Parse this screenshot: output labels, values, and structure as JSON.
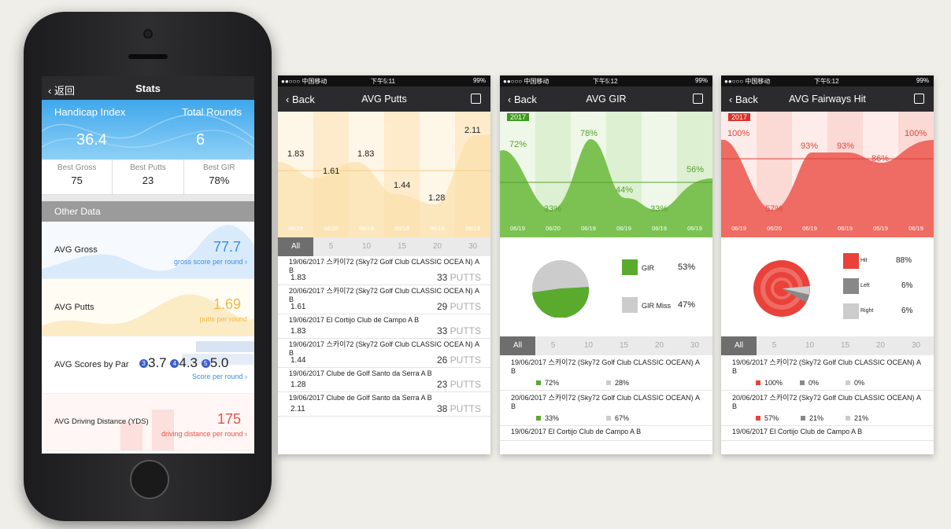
{
  "phone": {
    "nav": {
      "back": "返回",
      "title": "Stats"
    },
    "hero": {
      "handicap_label": "Handicap Index",
      "rounds_label": "Total Rounds",
      "handicap": "36.4",
      "rounds": "6"
    },
    "bests": [
      {
        "label": "Best Gross",
        "value": "75"
      },
      {
        "label": "Best Putts",
        "value": "23"
      },
      {
        "label": "Best GIR",
        "value": "78%"
      }
    ],
    "other_header": "Other Data",
    "rows": [
      {
        "name": "AVG Gross",
        "value": "77.7",
        "sub": "gross score per round",
        "color": "#3a8ee6"
      },
      {
        "name": "AVG Putts",
        "value": "1.69",
        "sub": "putts per round",
        "color": "#f0b840"
      },
      {
        "name": "AVG Scores by Par",
        "par3": "3.7",
        "par4": "4.3",
        "par5": "5.0",
        "sub": "Score per round",
        "color": "#3a5fcd"
      },
      {
        "name": "AVG Driving Distance (YDS)",
        "value": "175",
        "sub": "driving distance per round",
        "color": "#e8514a"
      }
    ],
    "par_badges": [
      "3",
      "4",
      "5"
    ]
  },
  "status": {
    "carrier": "●●○○○ 中国移动",
    "battery": "99%",
    "t1": "下午5:11",
    "t2": "下午5:12"
  },
  "tabs": [
    "All",
    "5",
    "10",
    "15",
    "20",
    "30"
  ],
  "putts_screen": {
    "nav": {
      "back": "Back",
      "title": "AVG Putts"
    },
    "chart_labels": [
      "1.83",
      "1.61",
      "1.83",
      "1.44",
      "1.28",
      "2.11"
    ],
    "dates": [
      "06/19",
      "06/20",
      "06/19",
      "06/19",
      "06/19",
      "06/19"
    ],
    "rounds": [
      {
        "course": "19/06/2017  스카이72 (Sky72 Golf Club CLASSIC OCEA N)   A B",
        "avg": "1.83",
        "putts": "33"
      },
      {
        "course": "20/06/2017  스카이72 (Sky72 Golf Club CLASSIC OCEA N)   A B",
        "avg": "1.61",
        "putts": "29"
      },
      {
        "course": "19/06/2017  El Cortijo Club de Campo    A B",
        "avg": "1.83",
        "putts": "33"
      },
      {
        "course": "19/06/2017  스카이72 (Sky72 Golf Club CLASSIC OCEA N)   A B",
        "avg": "1.44",
        "putts": "26"
      },
      {
        "course": "19/06/2017  Clube de Golf Santo da Serra    A B",
        "avg": "1.28",
        "putts": "23"
      },
      {
        "course": "19/06/2017  Clube de Golf Santo da Serra    A B",
        "avg": "2.11",
        "putts": "38"
      }
    ],
    "putts_word": "PUTTS"
  },
  "gir_screen": {
    "nav": {
      "back": "Back",
      "title": "AVG GIR"
    },
    "year": "2017",
    "chart_labels": [
      "72%",
      "33%",
      "78%",
      "44%",
      "33%",
      "56%"
    ],
    "dates": [
      "06/19",
      "06/20",
      "06/19",
      "06/19",
      "06/19",
      "06/19"
    ],
    "legend": [
      {
        "label": "GIR",
        "pct": "53%",
        "color": "#5aaa2e"
      },
      {
        "label": "GIR Miss",
        "pct": "47%",
        "color": "#cccccc"
      }
    ],
    "rounds": [
      {
        "course": "19/06/2017  스카이72 (Sky72 Golf Club CLASSIC OCEAN)   A B",
        "gir": "72%",
        "miss": "28%"
      },
      {
        "course": "20/06/2017  스카이72 (Sky72 Golf Club CLASSIC OCEAN)   A B",
        "gir": "33%",
        "miss": "67%"
      },
      {
        "course": "19/06/2017  El Cortijo Club de Campo    A B",
        "gir": "",
        "miss": ""
      }
    ]
  },
  "fw_screen": {
    "nav": {
      "back": "Back",
      "title": "AVG Fairways Hit"
    },
    "year": "2017",
    "chart_labels": [
      "100%",
      "57%",
      "93%",
      "93%",
      "86%",
      "100%"
    ],
    "dates": [
      "06/19",
      "06/20",
      "06/19",
      "06/19",
      "06/19",
      "06/19"
    ],
    "legend": [
      {
        "label": "Hit",
        "pct": "88%",
        "color": "#e8423a"
      },
      {
        "label": "Left",
        "pct": "6%",
        "color": "#888888"
      },
      {
        "label": "Right",
        "pct": "6%",
        "color": "#cccccc"
      }
    ],
    "rounds": [
      {
        "course": "19/06/2017  스카이72 (Sky72 Golf Club CLASSIC OCEAN)   A B",
        "hit": "100%",
        "left": "0%",
        "right": "0%"
      },
      {
        "course": "20/06/2017  스카이72 (Sky72 Golf Club CLASSIC OCEAN)   A B",
        "hit": "57%",
        "left": "21%",
        "right": "21%"
      },
      {
        "course": "19/06/2017  El Cortijo Club de Campo    A B",
        "hit": "",
        "left": "",
        "right": ""
      }
    ]
  }
}
